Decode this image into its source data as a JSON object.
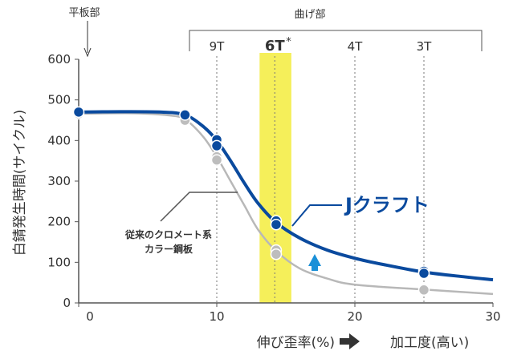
{
  "chart_data": {
    "type": "line",
    "ylabel": "白錆発生時間(サイクル)",
    "xlabel": "伸び歪率(%)",
    "xlabel_arrow_text": "加工度(高い)",
    "xlim": [
      0,
      30
    ],
    "ylim": [
      0,
      600
    ],
    "x_ticks": [
      "0",
      "10",
      "20",
      "30"
    ],
    "y_ticks": [
      "0",
      "100",
      "200",
      "300",
      "400",
      "500",
      "600"
    ],
    "top_labels": {
      "flat": "平板部",
      "bend": "曲げ部",
      "bends": [
        {
          "label": "9T",
          "x": 10
        },
        {
          "label": "6T",
          "x": 14.2,
          "emphasis": true,
          "mark": "*"
        },
        {
          "label": "4T",
          "x": 20
        },
        {
          "label": "3T",
          "x": 25
        }
      ]
    },
    "highlight_band": {
      "x": [
        13.1,
        15.4
      ],
      "color": "#f5ef5a"
    },
    "series": [
      {
        "name": "Jクラフト",
        "color": "#0a4a9e",
        "points": [
          {
            "x": 0,
            "y": 470
          },
          {
            "x": 7.7,
            "y": 463
          },
          {
            "x": 10,
            "y": 402
          },
          {
            "x": 10,
            "y": 387
          },
          {
            "x": 14.3,
            "y": 202
          },
          {
            "x": 14.3,
            "y": 193
          },
          {
            "x": 25,
            "y": 78
          },
          {
            "x": 25,
            "y": 73
          }
        ],
        "curve": [
          [
            0,
            470
          ],
          [
            3,
            471
          ],
          [
            6,
            470
          ],
          [
            7.7,
            463
          ],
          [
            9,
            435
          ],
          [
            10,
            400
          ],
          [
            11,
            350
          ],
          [
            12,
            295
          ],
          [
            13,
            245
          ],
          [
            14.3,
            198
          ],
          [
            16,
            160
          ],
          [
            18,
            130
          ],
          [
            20,
            110
          ],
          [
            22,
            95
          ],
          [
            25,
            76
          ],
          [
            28,
            64
          ],
          [
            30,
            57
          ]
        ]
      },
      {
        "name": "従来のクロメート系カラー鋼板",
        "color": "#b8b8b8",
        "points": [
          {
            "x": 0,
            "y": 466
          },
          {
            "x": 7.7,
            "y": 450
          },
          {
            "x": 10,
            "y": 360
          },
          {
            "x": 10,
            "y": 352
          },
          {
            "x": 14.3,
            "y": 130
          },
          {
            "x": 14.3,
            "y": 120
          },
          {
            "x": 25,
            "y": 32
          }
        ],
        "curve": [
          [
            0,
            466
          ],
          [
            4,
            467
          ],
          [
            6.5,
            462
          ],
          [
            7.7,
            452
          ],
          [
            9,
            410
          ],
          [
            10,
            360
          ],
          [
            11,
            300
          ],
          [
            12,
            240
          ],
          [
            13,
            180
          ],
          [
            14.3,
            128
          ],
          [
            16,
            85
          ],
          [
            18,
            60
          ],
          [
            20,
            45
          ],
          [
            25,
            33
          ],
          [
            30,
            22
          ]
        ]
      }
    ],
    "annotations": {
      "jcraft": "Jクラフト",
      "conventional_line1": "従来のクロメート系",
      "conventional_line2": "カラー鋼板"
    },
    "arrow_color": "#1a90d8"
  }
}
